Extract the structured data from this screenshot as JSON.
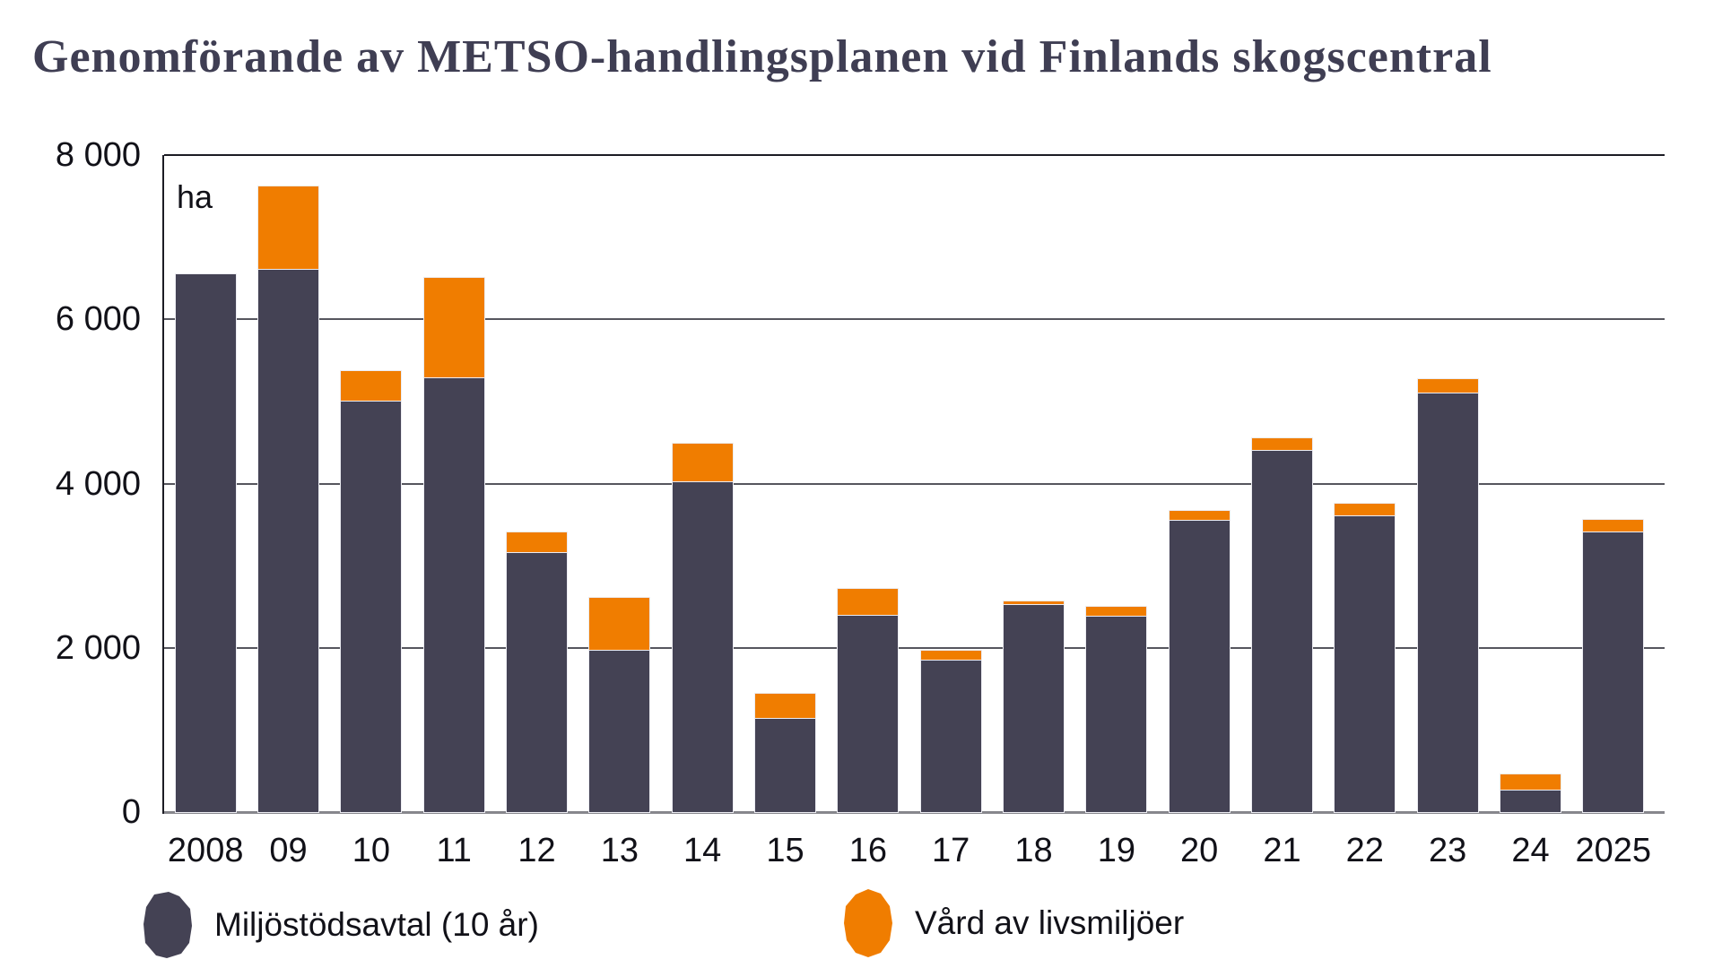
{
  "title": "Genomförande av METSO-handlingsplanen vid Finlands skogscentral",
  "unit_label": "ha",
  "colors": {
    "dark_series": "#444254",
    "orange_series": "#f07d00",
    "title_text": "#3f3e53",
    "gridline": "#56565e",
    "axis_top_left": "#1c1c24",
    "axis_bottom": "#87878d",
    "tick_text": "#111118"
  },
  "legend": [
    {
      "label": "Miljöstödsavtal (10 år)",
      "color": "#444254"
    },
    {
      "label": "Vård av livsmiljöer",
      "color": "#f07d00"
    }
  ],
  "chart_data": {
    "type": "bar",
    "stacked": true,
    "title": "Genomförande av METSO-handlingsplanen vid Finlands skogscentral",
    "unit": "ha",
    "categories": [
      "2008",
      "09",
      "10",
      "11",
      "12",
      "13",
      "14",
      "15",
      "16",
      "17",
      "18",
      "19",
      "20",
      "21",
      "22",
      "23",
      "24",
      "2025"
    ],
    "series": [
      {
        "name": "Miljöstödsavtal (10 år)",
        "color": "#444254",
        "values": [
          6550,
          6600,
          5000,
          5280,
          3150,
          1960,
          4020,
          1130,
          2390,
          1850,
          2520,
          2380,
          3550,
          4400,
          3600,
          5100,
          260,
          3400
        ]
      },
      {
        "name": "Vård av livsmiljöer",
        "color": "#f07d00",
        "values": [
          0,
          1020,
          370,
          1220,
          250,
          650,
          470,
          310,
          330,
          120,
          40,
          120,
          120,
          150,
          150,
          170,
          200,
          160
        ]
      }
    ],
    "totals": [
      6550,
      7620,
      5370,
      6500,
      3400,
      2610,
      4490,
      1440,
      2720,
      1970,
      2560,
      2500,
      3670,
      4550,
      3750,
      5270,
      460,
      3560
    ],
    "xlabel": "",
    "ylabel": "ha",
    "ylim": [
      0,
      8000
    ],
    "y_ticks": [
      0,
      2000,
      4000,
      6000,
      8000
    ],
    "y_tick_labels": [
      "0",
      "2 000",
      "4 000",
      "6 000",
      "8 000"
    ],
    "grid": "horizontal",
    "legend_position": "bottom"
  }
}
